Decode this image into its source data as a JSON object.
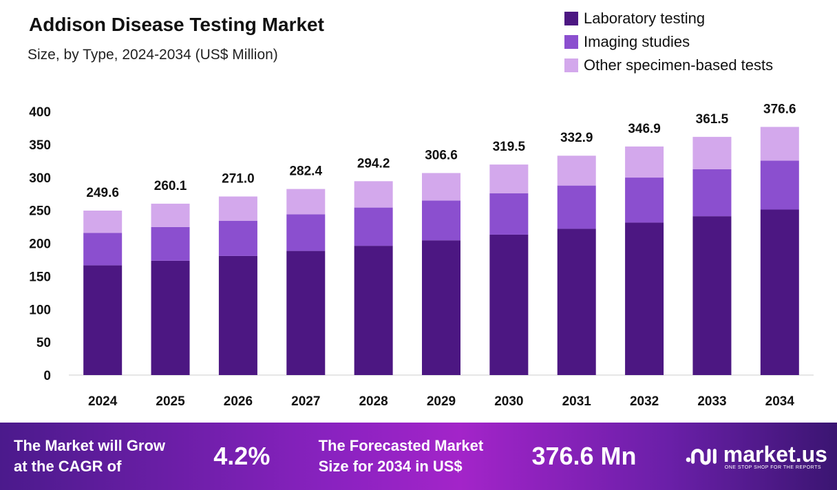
{
  "chart_data": {
    "type": "bar",
    "stacked": true,
    "title": "Addison Disease Testing Market",
    "subtitle": "Size, by Type, 2024-2034 (US$ Million)",
    "categories": [
      "2024",
      "2025",
      "2026",
      "2027",
      "2028",
      "2029",
      "2030",
      "2031",
      "2032",
      "2033",
      "2034"
    ],
    "series": [
      {
        "name": "Laboratory testing",
        "color": "#4c1782",
        "values": [
          166.5,
          173.5,
          180.8,
          188.4,
          196.2,
          204.5,
          213.1,
          222.0,
          231.4,
          241.1,
          251.2
        ]
      },
      {
        "name": "Imaging studies",
        "color": "#8b4fcf",
        "values": [
          49.2,
          51.2,
          53.4,
          55.6,
          58.0,
          60.4,
          62.9,
          65.6,
          68.3,
          71.2,
          74.2
        ]
      },
      {
        "name": "Other specimen-based tests",
        "color": "#d3a8ec",
        "values": [
          33.9,
          35.4,
          36.8,
          38.4,
          40.0,
          41.7,
          43.5,
          45.3,
          47.2,
          49.2,
          51.2
        ]
      }
    ],
    "totals": [
      "249.6",
      "260.1",
      "271.0",
      "282.4",
      "294.2",
      "306.6",
      "319.5",
      "332.9",
      "346.9",
      "361.5",
      "376.6"
    ],
    "yticks": [
      "0",
      "50",
      "100",
      "150",
      "200",
      "250",
      "300",
      "350",
      "400"
    ],
    "ylim": [
      0,
      400
    ],
    "grid": false,
    "legend": "top-right"
  },
  "footer": {
    "cagr_label": [
      "The Market will Grow",
      "at the CAGR of"
    ],
    "cagr_value": "4.2%",
    "forecast_label": [
      "The Forecasted Market",
      "Size for 2034 in US$"
    ],
    "forecast_value": "376.6 Mn",
    "brand": "market.us",
    "tagline": "ONE STOP SHOP FOR THE REPORTS"
  }
}
